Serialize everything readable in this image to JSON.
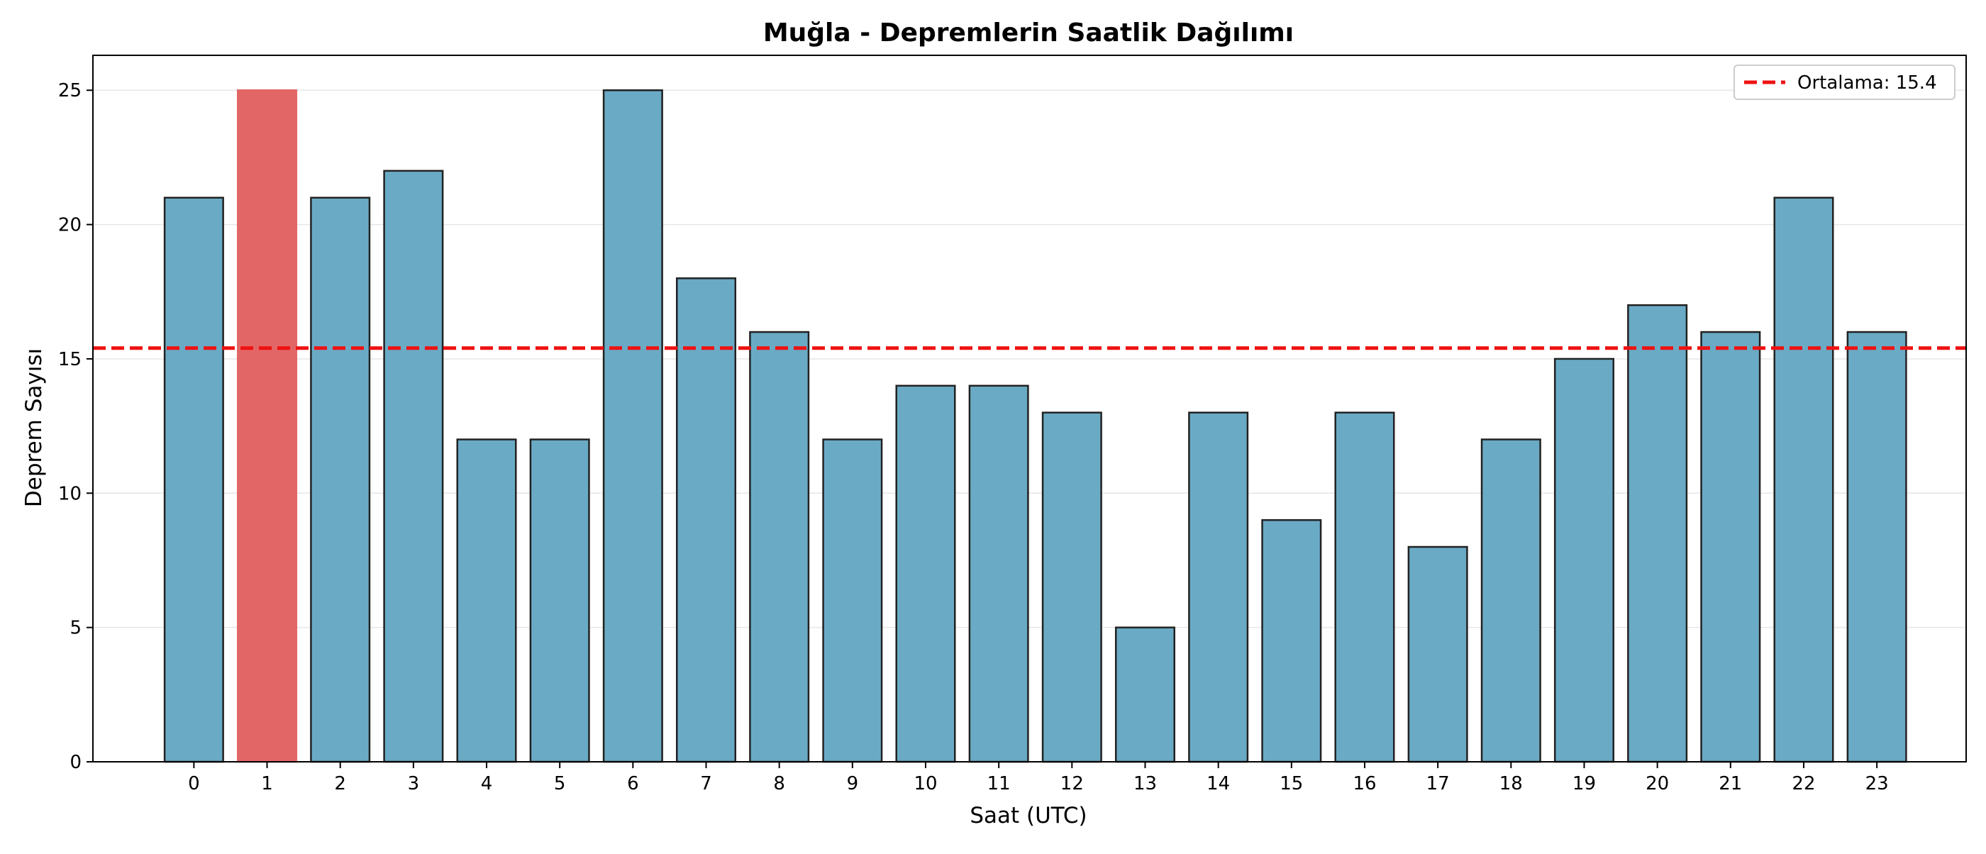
{
  "chart_data": {
    "type": "bar",
    "title": "Muğla - Depremlerin Saatlik Dağılımı",
    "xlabel": "Saat (UTC)",
    "ylabel": "Deprem Sayısı",
    "categories": [
      "0",
      "1",
      "2",
      "3",
      "4",
      "5",
      "6",
      "7",
      "8",
      "9",
      "10",
      "11",
      "12",
      "13",
      "14",
      "15",
      "16",
      "17",
      "18",
      "19",
      "20",
      "21",
      "22",
      "23"
    ],
    "values": [
      21,
      25,
      21,
      22,
      12,
      12,
      25,
      18,
      16,
      12,
      14,
      14,
      13,
      5,
      13,
      9,
      13,
      8,
      12,
      15,
      17,
      16,
      21,
      16
    ],
    "highlight_index": 1,
    "ylim": [
      0,
      26.3
    ],
    "yticks": [
      0,
      5,
      10,
      15,
      20,
      25
    ],
    "grid": "horizontal",
    "mean_line": {
      "label": "Ortalama: 15.4",
      "value": 15.4
    },
    "legend": {
      "position": "top-right"
    },
    "colors": {
      "bar": "#6aaac5",
      "bar_highlight": "#e36666",
      "bar_edge": "#222222",
      "mean_line": "#ee1111"
    }
  }
}
